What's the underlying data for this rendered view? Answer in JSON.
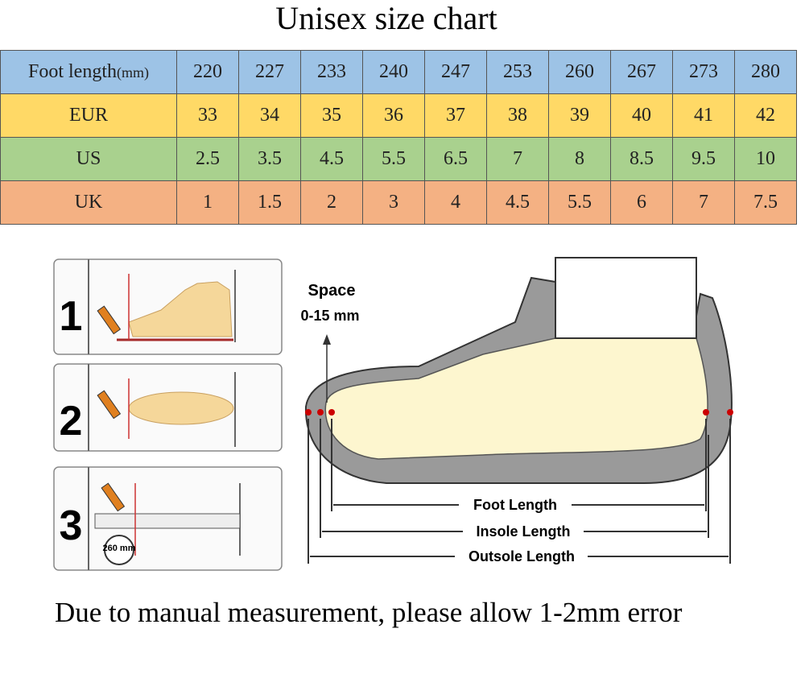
{
  "title": "Unisex size chart",
  "table": {
    "header": {
      "label": "Foot length",
      "unit": "(mm)",
      "cells": [
        "220",
        "227",
        "233",
        "240",
        "247",
        "253",
        "260",
        "267",
        "273",
        "280"
      ]
    },
    "rows": [
      {
        "label": "EUR",
        "cells": [
          "33",
          "34",
          "35",
          "36",
          "37",
          "38",
          "39",
          "40",
          "41",
          "42"
        ]
      },
      {
        "label": "US",
        "cells": [
          "2.5",
          "3.5",
          "4.5",
          "5.5",
          "6.5",
          "7",
          "8",
          "8.5",
          "9.5",
          "10"
        ]
      },
      {
        "label": "UK",
        "cells": [
          "1",
          "1.5",
          "2",
          "3",
          "4",
          "4.5",
          "5.5",
          "6",
          "7",
          "7.5"
        ]
      }
    ]
  },
  "steps": {
    "labels": [
      "1",
      "2",
      "3"
    ],
    "ruler_reading": "260 mm"
  },
  "diagram": {
    "space_label": "Space",
    "space_range": "0-15 mm",
    "measures": [
      "Foot Length",
      "Insole Length",
      "Outsole Length"
    ]
  },
  "note": "Due to manual measurement, please allow 1-2mm error"
}
